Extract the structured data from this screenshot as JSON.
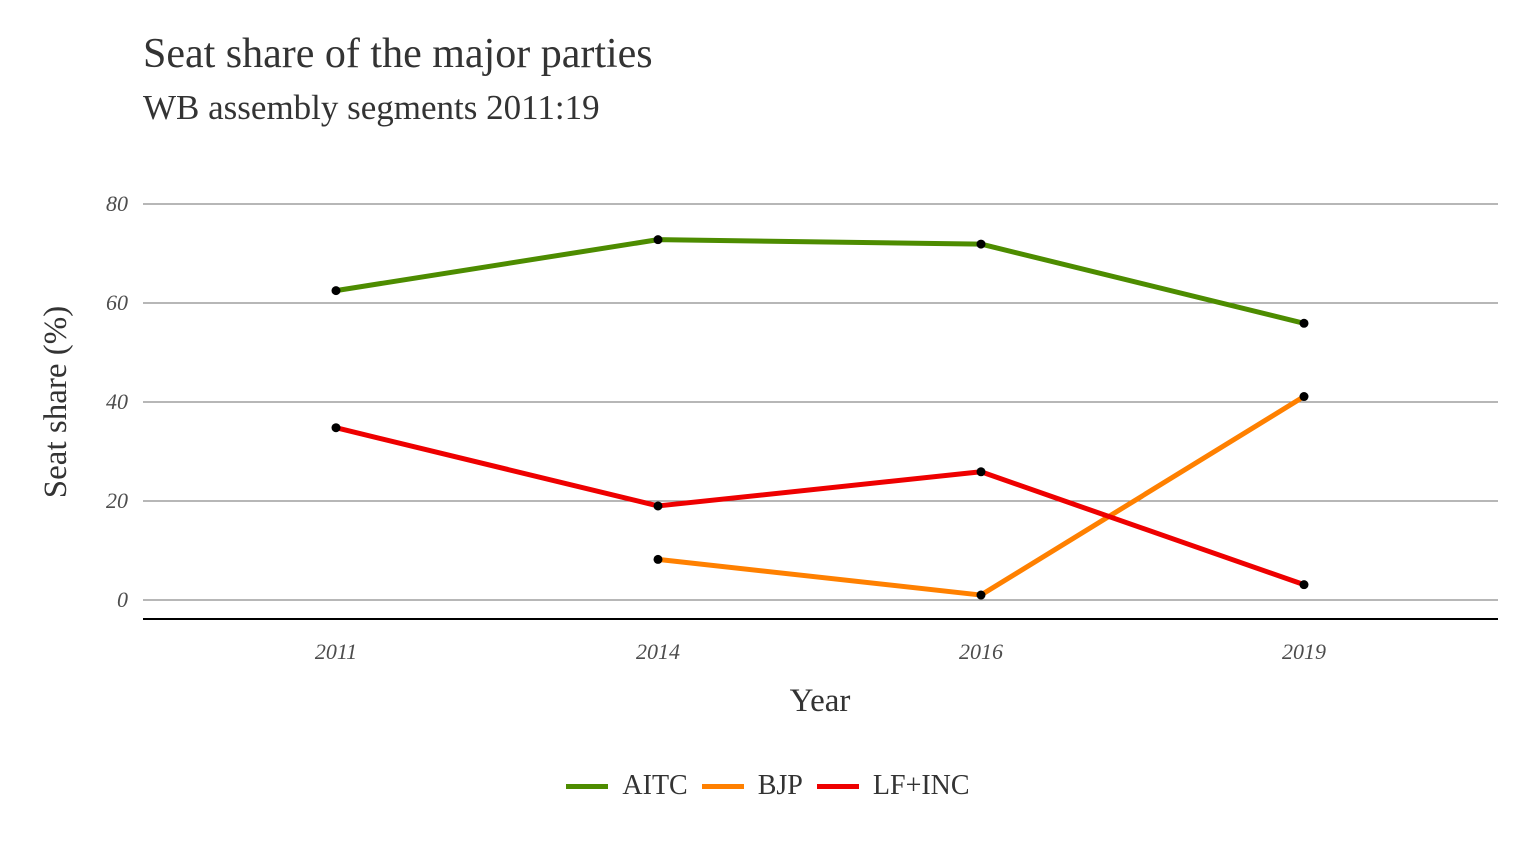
{
  "chart_data": {
    "type": "line",
    "title": "Seat share of the major parties",
    "subtitle": "WB assembly segments  2011:19",
    "xlabel": "Year",
    "ylabel": "Seat share (%)",
    "categories": [
      "2011",
      "2014",
      "2016",
      "2019"
    ],
    "yticks": [
      0,
      20,
      40,
      60,
      80
    ],
    "ylim": [
      -4,
      80
    ],
    "grid": "horizontal",
    "legend_position": "bottom",
    "series": [
      {
        "name": "AITC",
        "color": "#4d8c00",
        "values": [
          62.5,
          72.8,
          71.9,
          55.9
        ]
      },
      {
        "name": "BJP",
        "color": "#ff8000",
        "values": [
          null,
          8.2,
          1.0,
          41.1
        ]
      },
      {
        "name": "LF+INC",
        "color": "#ee0000",
        "values": [
          34.8,
          19.0,
          25.9,
          3.1
        ]
      }
    ]
  }
}
